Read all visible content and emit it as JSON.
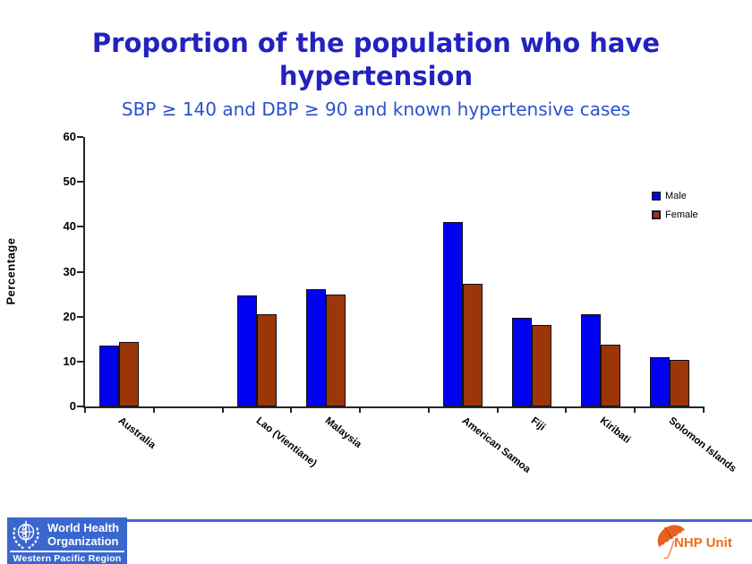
{
  "slide": {
    "title_line1": "Proportion of the population who have",
    "title_line2": "hypertension",
    "subtitle": "SBP ≥ 140 and DBP ≥ 90 and known hypertensive cases"
  },
  "chart_data": {
    "type": "bar",
    "title": "Proportion of the population who have hypertension",
    "subtitle": "SBP ≥ 140 and DBP ≥ 90 and known hypertensive cases",
    "ylabel": "Percentage",
    "xlabel": "",
    "ylim": [
      0,
      60
    ],
    "yticks": [
      0,
      10,
      20,
      30,
      40,
      50,
      60
    ],
    "grid": false,
    "legend_position": "right",
    "slots": 9,
    "slot_index": [
      0,
      2,
      3,
      5,
      6,
      7,
      8
    ],
    "categories": [
      "Australia",
      "Lao (Vientiane)",
      "Malaysia",
      "American Samoa",
      "Fiji",
      "Kiribati",
      "Solomon Islands"
    ],
    "series": [
      {
        "name": "Male",
        "color": "#0202F2",
        "values": [
          13.5,
          24.8,
          26.2,
          41.0,
          19.7,
          20.6,
          11.0
        ]
      },
      {
        "name": "Female",
        "color": "#9C3508",
        "values": [
          14.4,
          20.5,
          25.0,
          27.3,
          18.1,
          13.8,
          10.4
        ]
      }
    ]
  },
  "footer": {
    "who_line1": "World Health",
    "who_line2": "Organization",
    "who_region": "Western Pacific Region",
    "nhp_label": "NHP Unit"
  },
  "colors": {
    "title_blue": "#2222BE",
    "subtitle_blue": "#2A52CE",
    "who_blue": "#3A67CE",
    "footer_line_blue": "#4169CD",
    "nhp_orange": "#E8701E",
    "male_blue": "#0202F2",
    "female_brown": "#9C3508"
  }
}
